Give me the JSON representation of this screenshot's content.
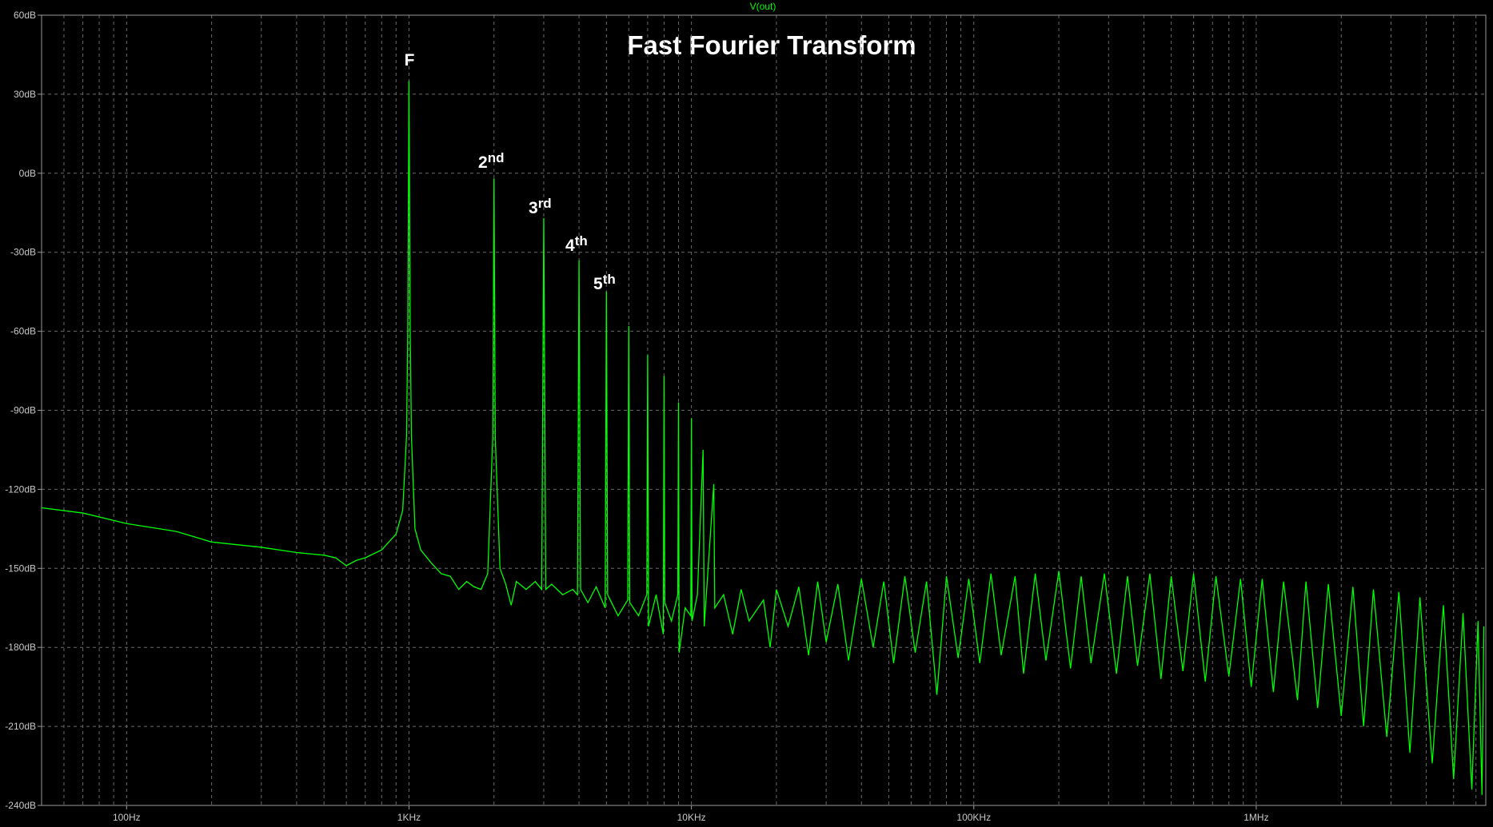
{
  "chart_data": {
    "type": "line",
    "title": "Fast Fourier Transform",
    "log_x": true,
    "grid": true,
    "background": "#000000",
    "xlim": [
      50,
      6500000
    ],
    "xticks": [
      {
        "value": 100,
        "label": "100Hz"
      },
      {
        "value": 1000,
        "label": "1KHz"
      },
      {
        "value": 10000,
        "label": "10KHz"
      },
      {
        "value": 100000,
        "label": "100KHz"
      },
      {
        "value": 1000000,
        "label": "1MHz"
      }
    ],
    "xminorticks": [
      60,
      70,
      80,
      90,
      200,
      300,
      400,
      500,
      600,
      700,
      800,
      900,
      2000,
      3000,
      4000,
      5000,
      6000,
      7000,
      8000,
      9000,
      20000,
      30000,
      40000,
      50000,
      60000,
      70000,
      80000,
      90000,
      200000,
      300000,
      400000,
      500000,
      600000,
      700000,
      800000,
      900000,
      2000000,
      3000000,
      4000000,
      5000000,
      6000000
    ],
    "ylim": [
      -240,
      60
    ],
    "yticks": [
      {
        "value": 60,
        "label": "60dB"
      },
      {
        "value": 30,
        "label": "30dB"
      },
      {
        "value": 0,
        "label": "0dB"
      },
      {
        "value": -30,
        "label": "-30dB"
      },
      {
        "value": -60,
        "label": "-60dB"
      },
      {
        "value": -90,
        "label": "-90dB"
      },
      {
        "value": -120,
        "label": "-120dB"
      },
      {
        "value": -150,
        "label": "-150dB"
      },
      {
        "value": -180,
        "label": "-180dB"
      },
      {
        "value": -210,
        "label": "-210dB"
      },
      {
        "value": -240,
        "label": "-240dB"
      }
    ],
    "annotations": [
      {
        "text": "F"
      },
      {
        "text": "2",
        "sup": "nd"
      },
      {
        "text": "3",
        "sup": "rd"
      },
      {
        "text": "4",
        "sup": "th"
      },
      {
        "text": "5",
        "sup": "th"
      }
    ],
    "series": [
      {
        "name": "V(out)",
        "color": "#00ff00",
        "x": [
          50,
          70,
          100,
          150,
          200,
          300,
          400,
          500,
          550,
          600,
          650,
          700,
          800,
          900,
          950,
          980,
          990,
          1000,
          1010,
          1020,
          1050,
          1100,
          1200,
          1300,
          1400,
          1500,
          1600,
          1700,
          1800,
          1900,
          1980,
          2000,
          2020,
          2100,
          2200,
          2300,
          2400,
          2600,
          2800,
          2950,
          3000,
          3050,
          3200,
          3500,
          3800,
          3950,
          4000,
          4050,
          4300,
          4600,
          4950,
          5000,
          5050,
          5500,
          5950,
          6000,
          6050,
          6500,
          6950,
          7000,
          7050,
          7500,
          7950,
          8000,
          8050,
          8500,
          8950,
          9000,
          9050,
          9500,
          9950,
          10000,
          10050,
          10500,
          11000,
          11100,
          12000,
          12100,
          13000,
          14000,
          15000,
          16000,
          18000,
          19000,
          20000,
          22000,
          24000,
          26000,
          28000,
          30000,
          33000,
          36000,
          40000,
          44000,
          48000,
          52000,
          57000,
          62000,
          68000,
          74000,
          80000,
          88000,
          96000,
          105000,
          115000,
          125000,
          140000,
          150000,
          165000,
          180000,
          200000,
          220000,
          240000,
          260000,
          290000,
          320000,
          350000,
          380000,
          420000,
          460000,
          500000,
          550000,
          600000,
          660000,
          720000,
          800000,
          880000,
          960000,
          1050000,
          1150000,
          1250000,
          1400000,
          1500000,
          1650000,
          1800000,
          2000000,
          2200000,
          2400000,
          2600000,
          2900000,
          3200000,
          3500000,
          3800000,
          4200000,
          4600000,
          5000000,
          5400000,
          5800000,
          6100000,
          6300000,
          6400000
        ],
        "values": [
          -127,
          -129,
          -133,
          -136,
          -140,
          -142,
          -144,
          -145,
          -146,
          -149,
          -147,
          -146,
          -143,
          -137,
          -128,
          -100,
          -60,
          35,
          -60,
          -100,
          -135,
          -143,
          -148,
          -152,
          -153,
          -158,
          -155,
          -157,
          -158,
          -152,
          -100,
          -2,
          -100,
          -150,
          -156,
          -164,
          -155,
          -158,
          -155,
          -158,
          -17,
          -158,
          -156,
          -160,
          -158,
          -160,
          -33,
          -158,
          -163,
          -157,
          -165,
          -45,
          -160,
          -168,
          -162,
          -58,
          -163,
          -168,
          -160,
          -69,
          -172,
          -160,
          -175,
          -77,
          -163,
          -170,
          -160,
          -87,
          -182,
          -165,
          -168,
          -93,
          -170,
          -160,
          -105,
          -172,
          -118,
          -165,
          -160,
          -175,
          -158,
          -170,
          -162,
          -180,
          -158,
          -172,
          -157,
          -183,
          -155,
          -178,
          -156,
          -185,
          -154,
          -180,
          -155,
          -186,
          -153,
          -182,
          -155,
          -198,
          -153,
          -184,
          -154,
          -186,
          -152,
          -183,
          -153,
          -190,
          -152,
          -185,
          -151,
          -188,
          -153,
          -186,
          -152,
          -190,
          -153,
          -187,
          -152,
          -192,
          -153,
          -189,
          -152,
          -193,
          -153,
          -191,
          -154,
          -195,
          -154,
          -197,
          -155,
          -200,
          -155,
          -203,
          -156,
          -206,
          -157,
          -210,
          -158,
          -214,
          -159,
          -220,
          -161,
          -224,
          -164,
          -230,
          -167,
          -234,
          -170,
          -236,
          -172
        ]
      }
    ]
  }
}
